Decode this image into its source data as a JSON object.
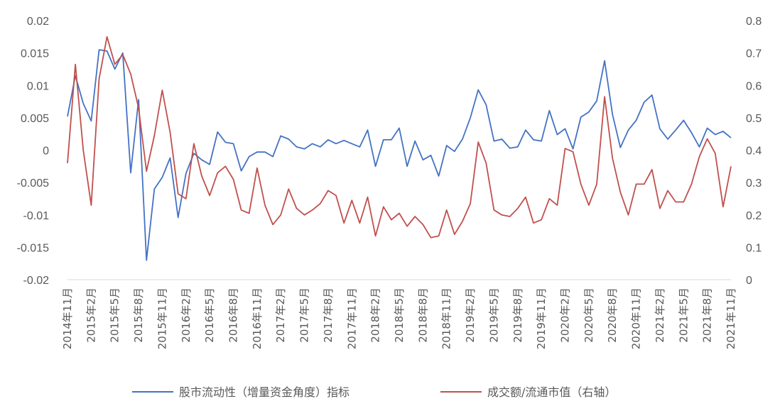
{
  "chart_data": {
    "type": "line",
    "categories": [
      "2014年11月",
      "2014年12月",
      "2015年1月",
      "2015年2月",
      "2015年3月",
      "2015年4月",
      "2015年5月",
      "2015年6月",
      "2015年7月",
      "2015年8月",
      "2015年9月",
      "2015年10月",
      "2015年11月",
      "2015年12月",
      "2016年1月",
      "2016年2月",
      "2016年3月",
      "2016年4月",
      "2016年5月",
      "2016年6月",
      "2016年7月",
      "2016年8月",
      "2016年9月",
      "2016年10月",
      "2016年11月",
      "2016年12月",
      "2017年1月",
      "2017年2月",
      "2017年3月",
      "2017年4月",
      "2017年5月",
      "2017年6月",
      "2017年7月",
      "2017年8月",
      "2017年9月",
      "2017年10月",
      "2017年11月",
      "2017年12月",
      "2018年1月",
      "2018年2月",
      "2018年3月",
      "2018年4月",
      "2018年5月",
      "2018年6月",
      "2018年7月",
      "2018年8月",
      "2018年9月",
      "2018年10月",
      "2018年11月",
      "2018年12月",
      "2019年1月",
      "2019年2月",
      "2019年3月",
      "2019年4月",
      "2019年5月",
      "2019年6月",
      "2019年7月",
      "2019年8月",
      "2019年9月",
      "2019年10月",
      "2019年11月",
      "2019年12月",
      "2020年1月",
      "2020年2月",
      "2020年3月",
      "2020年4月",
      "2020年5月",
      "2020年6月",
      "2020年7月",
      "2020年8月",
      "2020年9月",
      "2020年10月",
      "2020年11月",
      "2020年12月",
      "2021年1月",
      "2021年2月",
      "2021年3月",
      "2021年4月",
      "2021年5月",
      "2021年6月",
      "2021年7月",
      "2021年8月",
      "2021年9月",
      "2021年10月",
      "2021年11月"
    ],
    "x_tick_labels": [
      "2014年11月",
      "2015年2月",
      "2015年5月",
      "2015年8月",
      "2015年11月",
      "2016年2月",
      "2016年5月",
      "2016年8月",
      "2016年11月",
      "2017年2月",
      "2017年5月",
      "2017年8月",
      "2017年11月",
      "2018年2月",
      "2018年5月",
      "2018年8月",
      "2018年11月",
      "2019年2月",
      "2019年5月",
      "2019年8月",
      "2019年11月",
      "2020年2月",
      "2020年5月",
      "2020年8月",
      "2020年11月",
      "2021年2月",
      "2021年5月",
      "2021年8月",
      "2021年11月"
    ],
    "y_left": {
      "lim": [
        -0.02,
        0.02
      ],
      "ticks": [
        "0.02",
        "0.015",
        "0.01",
        "0.005",
        "0",
        "-0.005",
        "-0.01",
        "-0.015",
        "-0.02"
      ]
    },
    "y_right": {
      "lim": [
        0,
        0.8
      ],
      "ticks": [
        "0.8",
        "0.7",
        "0.6",
        "0.5",
        "0.4",
        "0.3",
        "0.2",
        "0.1",
        "0"
      ]
    },
    "grid": false,
    "legend_position": "bottom",
    "series": [
      {
        "name": "股市流动性（增量资金角度）指标",
        "axis": "left",
        "color": "#4472C4",
        "values": [
          0.0052,
          0.0115,
          0.0072,
          0.0045,
          0.0155,
          0.0153,
          0.0125,
          0.015,
          -0.0035,
          0.0078,
          -0.017,
          -0.006,
          -0.0042,
          -0.0012,
          -0.0104,
          -0.0036,
          -0.0005,
          -0.0015,
          -0.0022,
          0.0028,
          0.0012,
          0.001,
          -0.0032,
          -0.001,
          -0.0003,
          -0.0003,
          -0.001,
          0.0022,
          0.0017,
          0.0005,
          0.0002,
          0.001,
          0.0005,
          0.0016,
          0.001,
          0.0015,
          0.001,
          0.0005,
          0.0031,
          -0.0025,
          0.0016,
          0.0016,
          0.0034,
          -0.0025,
          0.0014,
          -0.0015,
          -0.0008,
          -0.004,
          0.0007,
          -0.0002,
          0.0017,
          0.005,
          0.0093,
          0.007,
          0.0014,
          0.0017,
          0.0003,
          0.0005,
          0.0031,
          0.0016,
          0.0014,
          0.0061,
          0.0024,
          0.0033,
          0.0002,
          0.0051,
          0.0059,
          0.0076,
          0.0138,
          0.0055,
          0.0004,
          0.0031,
          0.0046,
          0.0074,
          0.0085,
          0.0033,
          0.0017,
          0.0031,
          0.0046,
          0.0027,
          0.0005,
          0.0034,
          0.0024,
          0.0029,
          0.0019
        ]
      },
      {
        "name": "成交额/流通市值（右轴）",
        "axis": "right",
        "color": "#C0504D",
        "values": [
          0.36,
          0.665,
          0.4,
          0.23,
          0.62,
          0.75,
          0.665,
          0.695,
          0.635,
          0.53,
          0.335,
          0.445,
          0.585,
          0.455,
          0.265,
          0.25,
          0.42,
          0.32,
          0.26,
          0.33,
          0.35,
          0.31,
          0.215,
          0.205,
          0.345,
          0.23,
          0.17,
          0.2,
          0.28,
          0.22,
          0.2,
          0.215,
          0.235,
          0.275,
          0.26,
          0.175,
          0.245,
          0.175,
          0.255,
          0.135,
          0.225,
          0.185,
          0.205,
          0.165,
          0.195,
          0.17,
          0.13,
          0.135,
          0.215,
          0.14,
          0.18,
          0.235,
          0.425,
          0.36,
          0.215,
          0.2,
          0.195,
          0.22,
          0.255,
          0.175,
          0.185,
          0.25,
          0.23,
          0.405,
          0.395,
          0.295,
          0.23,
          0.295,
          0.565,
          0.375,
          0.27,
          0.2,
          0.295,
          0.295,
          0.34,
          0.22,
          0.275,
          0.24,
          0.24,
          0.295,
          0.38,
          0.435,
          0.39,
          0.225,
          0.35
        ]
      }
    ]
  }
}
